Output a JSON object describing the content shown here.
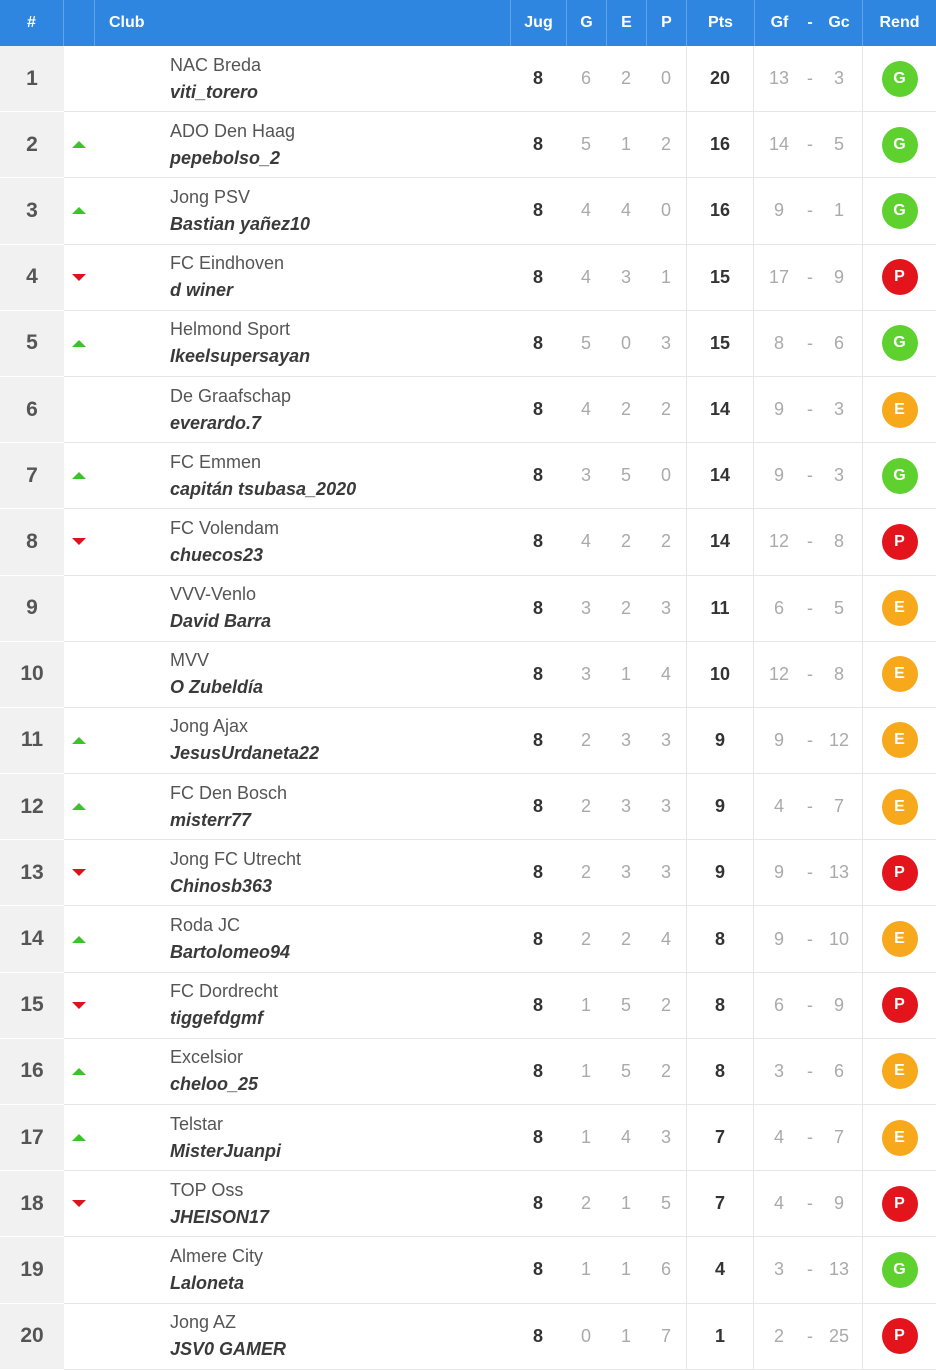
{
  "header": {
    "pos": "#",
    "club": "Club",
    "jug": "Jug",
    "g": "G",
    "e": "E",
    "p": "P",
    "pts": "Pts",
    "gf": "Gf",
    "dash": "-",
    "gc": "Gc",
    "rend": "Rend"
  },
  "colors": {
    "header_bg": "#2f86e0",
    "up": "#3cc22a",
    "down": "#d9141b",
    "G": "#5fd12e",
    "E": "#f7a81b",
    "P": "#e3141b"
  },
  "rows": [
    {
      "pos": "1",
      "trend": "none",
      "club": "NAC Breda",
      "manager": "viti_torero",
      "jug": "8",
      "g": "6",
      "e": "2",
      "p": "0",
      "pts": "20",
      "gf": "13",
      "dash": "-",
      "gc": "3",
      "rend": "G"
    },
    {
      "pos": "2",
      "trend": "up",
      "club": "ADO Den Haag",
      "manager": "pepebolso_2",
      "jug": "8",
      "g": "5",
      "e": "1",
      "p": "2",
      "pts": "16",
      "gf": "14",
      "dash": "-",
      "gc": "5",
      "rend": "G"
    },
    {
      "pos": "3",
      "trend": "up",
      "club": "Jong PSV",
      "manager": "Bastian yañez10",
      "jug": "8",
      "g": "4",
      "e": "4",
      "p": "0",
      "pts": "16",
      "gf": "9",
      "dash": "-",
      "gc": "1",
      "rend": "G"
    },
    {
      "pos": "4",
      "trend": "down",
      "club": "FC Eindhoven",
      "manager": "d winer",
      "jug": "8",
      "g": "4",
      "e": "3",
      "p": "1",
      "pts": "15",
      "gf": "17",
      "dash": "-",
      "gc": "9",
      "rend": "P"
    },
    {
      "pos": "5",
      "trend": "up",
      "club": "Helmond Sport",
      "manager": "Ikeelsupersayan",
      "jug": "8",
      "g": "5",
      "e": "0",
      "p": "3",
      "pts": "15",
      "gf": "8",
      "dash": "-",
      "gc": "6",
      "rend": "G"
    },
    {
      "pos": "6",
      "trend": "none",
      "club": "De Graafschap",
      "manager": "everardo.7",
      "jug": "8",
      "g": "4",
      "e": "2",
      "p": "2",
      "pts": "14",
      "gf": "9",
      "dash": "-",
      "gc": "3",
      "rend": "E"
    },
    {
      "pos": "7",
      "trend": "up",
      "club": "FC Emmen",
      "manager": "capitán tsubasa_2020",
      "jug": "8",
      "g": "3",
      "e": "5",
      "p": "0",
      "pts": "14",
      "gf": "9",
      "dash": "-",
      "gc": "3",
      "rend": "G"
    },
    {
      "pos": "8",
      "trend": "down",
      "club": "FC Volendam",
      "manager": "chuecos23",
      "jug": "8",
      "g": "4",
      "e": "2",
      "p": "2",
      "pts": "14",
      "gf": "12",
      "dash": "-",
      "gc": "8",
      "rend": "P"
    },
    {
      "pos": "9",
      "trend": "none",
      "club": "VVV-Venlo",
      "manager": "David Barra",
      "jug": "8",
      "g": "3",
      "e": "2",
      "p": "3",
      "pts": "11",
      "gf": "6",
      "dash": "-",
      "gc": "5",
      "rend": "E"
    },
    {
      "pos": "10",
      "trend": "none",
      "club": "MVV",
      "manager": "O Zubeldía",
      "jug": "8",
      "g": "3",
      "e": "1",
      "p": "4",
      "pts": "10",
      "gf": "12",
      "dash": "-",
      "gc": "8",
      "rend": "E"
    },
    {
      "pos": "11",
      "trend": "up",
      "club": "Jong Ajax",
      "manager": "JesusUrdaneta22",
      "jug": "8",
      "g": "2",
      "e": "3",
      "p": "3",
      "pts": "9",
      "gf": "9",
      "dash": "-",
      "gc": "12",
      "rend": "E"
    },
    {
      "pos": "12",
      "trend": "up",
      "club": "FC Den Bosch",
      "manager": "misterr77",
      "jug": "8",
      "g": "2",
      "e": "3",
      "p": "3",
      "pts": "9",
      "gf": "4",
      "dash": "-",
      "gc": "7",
      "rend": "E"
    },
    {
      "pos": "13",
      "trend": "down",
      "club": "Jong FC Utrecht",
      "manager": "Chinosb363",
      "jug": "8",
      "g": "2",
      "e": "3",
      "p": "3",
      "pts": "9",
      "gf": "9",
      "dash": "-",
      "gc": "13",
      "rend": "P"
    },
    {
      "pos": "14",
      "trend": "up",
      "club": "Roda JC",
      "manager": "Bartolomeo94",
      "jug": "8",
      "g": "2",
      "e": "2",
      "p": "4",
      "pts": "8",
      "gf": "9",
      "dash": "-",
      "gc": "10",
      "rend": "E"
    },
    {
      "pos": "15",
      "trend": "down",
      "club": "FC Dordrecht",
      "manager": "tiggefdgmf",
      "jug": "8",
      "g": "1",
      "e": "5",
      "p": "2",
      "pts": "8",
      "gf": "6",
      "dash": "-",
      "gc": "9",
      "rend": "P"
    },
    {
      "pos": "16",
      "trend": "up",
      "club": "Excelsior",
      "manager": "cheloo_25",
      "jug": "8",
      "g": "1",
      "e": "5",
      "p": "2",
      "pts": "8",
      "gf": "3",
      "dash": "-",
      "gc": "6",
      "rend": "E"
    },
    {
      "pos": "17",
      "trend": "up",
      "club": "Telstar",
      "manager": "MisterJuanpi",
      "jug": "8",
      "g": "1",
      "e": "4",
      "p": "3",
      "pts": "7",
      "gf": "4",
      "dash": "-",
      "gc": "7",
      "rend": "E"
    },
    {
      "pos": "18",
      "trend": "down",
      "club": "TOP Oss",
      "manager": "JHEISON17",
      "jug": "8",
      "g": "2",
      "e": "1",
      "p": "5",
      "pts": "7",
      "gf": "4",
      "dash": "-",
      "gc": "9",
      "rend": "P"
    },
    {
      "pos": "19",
      "trend": "none",
      "club": "Almere City",
      "manager": "Laloneta",
      "jug": "8",
      "g": "1",
      "e": "1",
      "p": "6",
      "pts": "4",
      "gf": "3",
      "dash": "-",
      "gc": "13",
      "rend": "G"
    },
    {
      "pos": "20",
      "trend": "none",
      "club": "Jong AZ",
      "manager": "JSV0 GAMER",
      "jug": "8",
      "g": "0",
      "e": "1",
      "p": "7",
      "pts": "1",
      "gf": "2",
      "dash": "-",
      "gc": "25",
      "rend": "P"
    }
  ]
}
